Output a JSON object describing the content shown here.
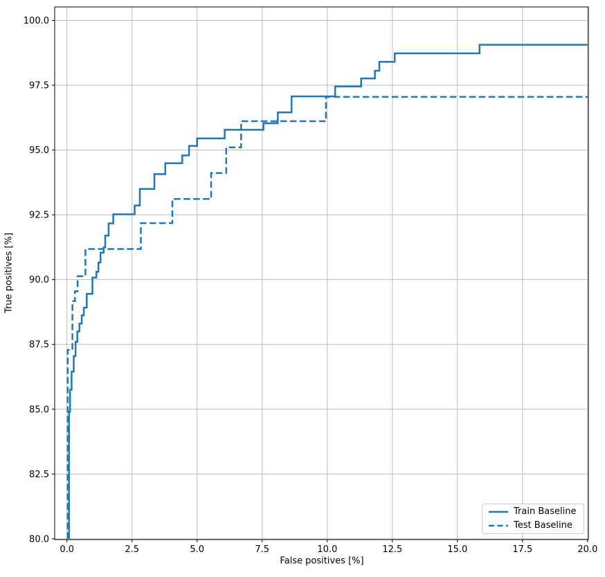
{
  "chart_data": {
    "type": "line",
    "subtype": "step-roc",
    "xlabel": "False positives [%]",
    "ylabel": "True positives [%]",
    "xlim": [
      -0.47,
      20.03
    ],
    "ylim": [
      79.97,
      100.52
    ],
    "x_ticks": [
      0,
      2.5,
      5,
      7.5,
      10,
      12.5,
      15,
      17.5,
      20
    ],
    "x_tick_labels": [
      "0.0",
      "2.5",
      "5.0",
      "7.5",
      "10.0",
      "12.5",
      "15.0",
      "17.5",
      "20.0"
    ],
    "y_ticks": [
      80,
      82.5,
      85,
      87.5,
      90,
      92.5,
      95,
      97.5,
      100
    ],
    "y_tick_labels": [
      "80.0",
      "82.5",
      "85.0",
      "87.5",
      "90.0",
      "92.5",
      "95.0",
      "97.5",
      "100.0"
    ],
    "grid": true,
    "grid_color": "#bdbdbd",
    "spine_color": "#000000",
    "line_width": 2.5,
    "legend": {
      "position": "lower right",
      "entries": [
        "Train Baseline",
        "Test Baseline"
      ]
    },
    "series": [
      {
        "name": "Train Baseline",
        "style": "solid",
        "color": "#1f77b4",
        "points": [
          [
            0.08,
            80.0
          ],
          [
            0.08,
            84.9
          ],
          [
            0.12,
            84.9
          ],
          [
            0.12,
            85.75
          ],
          [
            0.18,
            85.75
          ],
          [
            0.18,
            86.45
          ],
          [
            0.26,
            86.45
          ],
          [
            0.26,
            87.05
          ],
          [
            0.33,
            87.05
          ],
          [
            0.33,
            87.6
          ],
          [
            0.4,
            87.6
          ],
          [
            0.4,
            88.0
          ],
          [
            0.48,
            88.0
          ],
          [
            0.48,
            88.3
          ],
          [
            0.57,
            88.3
          ],
          [
            0.57,
            88.62
          ],
          [
            0.65,
            88.62
          ],
          [
            0.65,
            88.92
          ],
          [
            0.76,
            88.92
          ],
          [
            0.76,
            89.45
          ],
          [
            0.98,
            89.45
          ],
          [
            0.98,
            90.08
          ],
          [
            1.13,
            90.08
          ],
          [
            1.13,
            90.3
          ],
          [
            1.21,
            90.3
          ],
          [
            1.21,
            90.66
          ],
          [
            1.29,
            90.66
          ],
          [
            1.29,
            91.04
          ],
          [
            1.41,
            91.04
          ],
          [
            1.41,
            91.24
          ],
          [
            1.47,
            91.24
          ],
          [
            1.47,
            91.7
          ],
          [
            1.6,
            91.7
          ],
          [
            1.6,
            92.17
          ],
          [
            1.78,
            92.17
          ],
          [
            1.78,
            92.52
          ],
          [
            2.6,
            92.52
          ],
          [
            2.6,
            92.86
          ],
          [
            2.8,
            92.86
          ],
          [
            2.8,
            93.5
          ],
          [
            3.36,
            93.5
          ],
          [
            3.36,
            94.07
          ],
          [
            3.78,
            94.07
          ],
          [
            3.78,
            94.49
          ],
          [
            4.43,
            94.49
          ],
          [
            4.43,
            94.79
          ],
          [
            4.69,
            94.79
          ],
          [
            4.69,
            95.16
          ],
          [
            5.0,
            95.16
          ],
          [
            5.0,
            95.45
          ],
          [
            6.06,
            95.45
          ],
          [
            6.06,
            95.78
          ],
          [
            7.55,
            95.78
          ],
          [
            7.55,
            96.03
          ],
          [
            8.1,
            96.03
          ],
          [
            8.1,
            96.45
          ],
          [
            8.63,
            96.45
          ],
          [
            8.63,
            97.07
          ],
          [
            10.3,
            97.07
          ],
          [
            10.3,
            97.45
          ],
          [
            11.3,
            97.45
          ],
          [
            11.3,
            97.76
          ],
          [
            11.83,
            97.76
          ],
          [
            11.83,
            98.06
          ],
          [
            12.0,
            98.06
          ],
          [
            12.0,
            98.4
          ],
          [
            12.59,
            98.4
          ],
          [
            12.59,
            98.73
          ],
          [
            15.85,
            98.73
          ],
          [
            15.85,
            99.06
          ],
          [
            20.0,
            99.06
          ]
        ]
      },
      {
        "name": "Test Baseline",
        "style": "dashed",
        "color": "#1f77b4",
        "points": [
          [
            0.03,
            80.0
          ],
          [
            0.03,
            87.29
          ],
          [
            0.21,
            87.29
          ],
          [
            0.21,
            89.17
          ],
          [
            0.31,
            89.17
          ],
          [
            0.31,
            89.55
          ],
          [
            0.41,
            89.55
          ],
          [
            0.41,
            90.13
          ],
          [
            0.71,
            90.13
          ],
          [
            0.71,
            91.18
          ],
          [
            2.84,
            91.18
          ],
          [
            2.84,
            92.18
          ],
          [
            4.05,
            92.18
          ],
          [
            4.05,
            93.11
          ],
          [
            5.54,
            93.11
          ],
          [
            5.54,
            94.11
          ],
          [
            6.12,
            94.11
          ],
          [
            6.12,
            95.1
          ],
          [
            6.69,
            95.1
          ],
          [
            6.69,
            96.11
          ],
          [
            9.95,
            96.11
          ],
          [
            9.95,
            97.05
          ],
          [
            20.0,
            97.05
          ]
        ]
      }
    ]
  }
}
